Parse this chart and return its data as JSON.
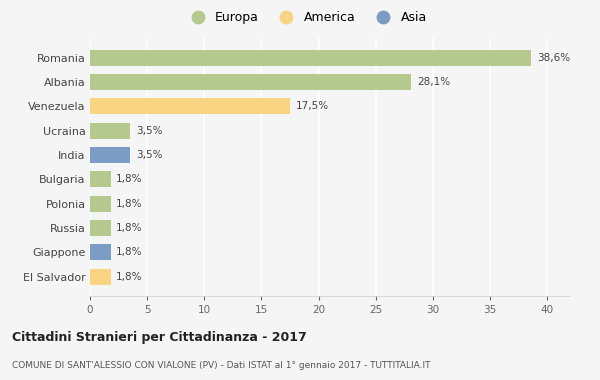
{
  "categories": [
    "Romania",
    "Albania",
    "Venezuela",
    "Ucraina",
    "India",
    "Bulgaria",
    "Polonia",
    "Russia",
    "Giappone",
    "El Salvador"
  ],
  "values": [
    38.6,
    28.1,
    17.5,
    3.5,
    3.5,
    1.8,
    1.8,
    1.8,
    1.8,
    1.8
  ],
  "labels": [
    "38,6%",
    "28,1%",
    "17,5%",
    "3,5%",
    "3,5%",
    "1,8%",
    "1,8%",
    "1,8%",
    "1,8%",
    "1,8%"
  ],
  "colors": [
    "#b5c98e",
    "#b5c98e",
    "#f9d483",
    "#b5c98e",
    "#7b9dc4",
    "#b5c98e",
    "#b5c98e",
    "#b5c98e",
    "#7b9dc4",
    "#f9d483"
  ],
  "legend": [
    {
      "label": "Europa",
      "color": "#b5c98e"
    },
    {
      "label": "America",
      "color": "#f9d483"
    },
    {
      "label": "Asia",
      "color": "#7b9dc4"
    }
  ],
  "xlim": [
    0,
    42
  ],
  "xticks": [
    0,
    5,
    10,
    15,
    20,
    25,
    30,
    35,
    40
  ],
  "title": "Cittadini Stranieri per Cittadinanza - 2017",
  "subtitle": "COMUNE DI SANT'ALESSIO CON VIALONE (PV) - Dati ISTAT al 1° gennaio 2017 - TUTTITALIA.IT",
  "background_color": "#f5f5f5",
  "grid_color": "#ffffff",
  "bar_height": 0.65
}
